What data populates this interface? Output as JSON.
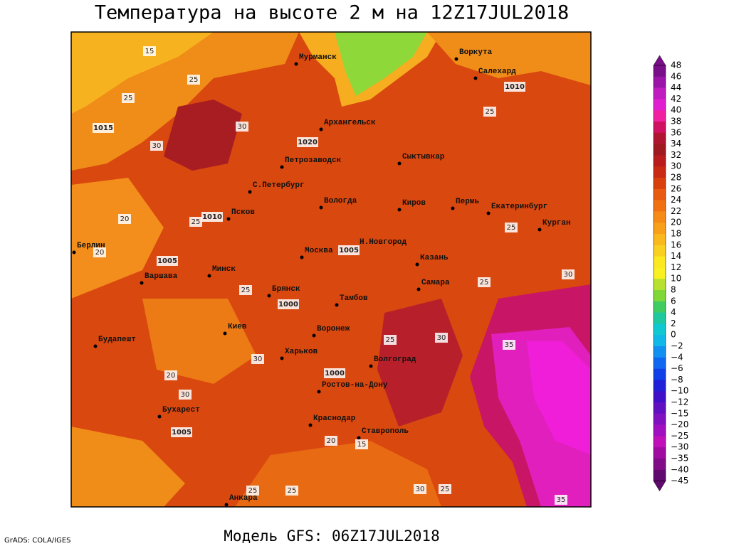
{
  "header": {
    "title": "Температура на высоте 2 м на 12Z17JUL2018"
  },
  "footer": {
    "model": "Модель GFS: 06Z17JUL2018",
    "credit": "GrADS: COLA/IGES"
  },
  "cities": [
    "Мурманск",
    "Воркута",
    "Салехард",
    "Архангельск",
    "Сыктывкар",
    "Петрозаводск",
    "С.Петербург",
    "Вологда",
    "Киров",
    "Пермь",
    "Екатеринбург",
    "Курган",
    "Псков",
    "Берлин",
    "Москва",
    "Н.Новгород",
    "Казань",
    "Минск",
    "Варшава",
    "Самара",
    "Брянск",
    "Тамбов",
    "Киев",
    "Воронеж",
    "Будапешт",
    "Харьков",
    "Волгоград",
    "Ростов-на-Дону",
    "Бухарест",
    "Краснодар",
    "Ставрополь",
    "Анкара"
  ],
  "isotherm_labels": [
    "15",
    "25",
    "25",
    "30",
    "30",
    "20",
    "25",
    "25",
    "20",
    "30",
    "25",
    "25",
    "25",
    "30",
    "35",
    "20",
    "30",
    "25",
    "30",
    "25",
    "25",
    "20",
    "15",
    "30",
    "25",
    "35"
  ],
  "isobar_labels": [
    "1015",
    "1020",
    "1010",
    "1005",
    "1000",
    "1000",
    "1005",
    "1010",
    "1005"
  ],
  "colorbar": {
    "labels": [
      "48",
      "46",
      "44",
      "42",
      "40",
      "38",
      "36",
      "34",
      "32",
      "30",
      "28",
      "26",
      "24",
      "22",
      "20",
      "18",
      "16",
      "14",
      "12",
      "10",
      "8",
      "6",
      "4",
      "2",
      "0",
      "−2",
      "−4",
      "−6",
      "−8",
      "−10",
      "−12",
      "−15",
      "−20",
      "−25",
      "−30",
      "−35",
      "−40",
      "−45"
    ]
  }
}
